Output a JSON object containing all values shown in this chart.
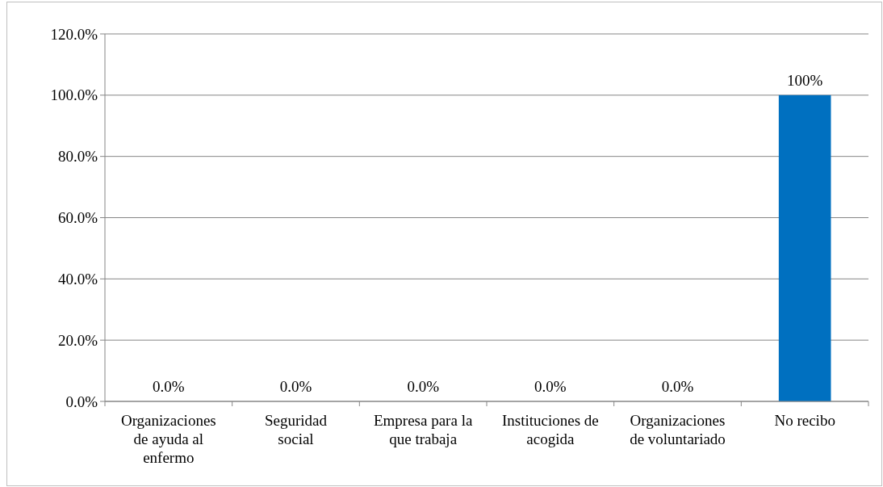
{
  "chart_data": {
    "type": "bar",
    "categories": [
      "Organizaciones de ayuda al enfermo",
      "Seguridad social",
      "Empresa para la que trabaja",
      "Instituciones de acogida",
      "Organizaciones de voluntariado",
      "No recibo"
    ],
    "values": [
      0,
      0,
      0,
      0,
      0,
      100
    ],
    "value_labels": [
      "0.0%",
      "0.0%",
      "0.0%",
      "0.0%",
      "0.0%",
      "100%"
    ],
    "color": "#0070c0",
    "ylim": [
      0,
      120
    ],
    "yticks": [
      {
        "value": 0,
        "label": "0.0%"
      },
      {
        "value": 20,
        "label": "20.0%"
      },
      {
        "value": 40,
        "label": "40.0%"
      },
      {
        "value": 60,
        "label": "60.0%"
      },
      {
        "value": 80,
        "label": "80.0%"
      },
      {
        "value": 100,
        "label": "100.0%"
      },
      {
        "value": 120,
        "label": "120.0%"
      }
    ],
    "grid": "y"
  }
}
